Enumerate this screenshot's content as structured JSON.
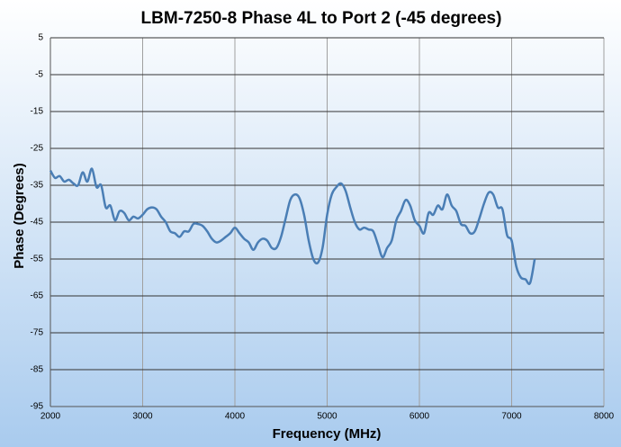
{
  "chart_data": {
    "type": "line",
    "title": "LBM-7250-8 Phase 4L to Port 2 (-45 degrees)",
    "x_label": "Frequency (MHz)",
    "y_label": "Phase (Degrees)",
    "x": [
      2000,
      2050,
      2100,
      2150,
      2200,
      2250,
      2300,
      2350,
      2400,
      2450,
      2500,
      2550,
      2600,
      2650,
      2700,
      2750,
      2800,
      2850,
      2900,
      2950,
      3000,
      3050,
      3100,
      3150,
      3200,
      3250,
      3300,
      3350,
      3400,
      3450,
      3500,
      3550,
      3600,
      3650,
      3700,
      3750,
      3800,
      3850,
      3900,
      3950,
      4000,
      4050,
      4100,
      4150,
      4200,
      4250,
      4300,
      4350,
      4400,
      4450,
      4500,
      4550,
      4600,
      4650,
      4700,
      4750,
      4800,
      4850,
      4900,
      4950,
      5000,
      5050,
      5100,
      5150,
      5200,
      5250,
      5300,
      5350,
      5400,
      5450,
      5500,
      5550,
      5600,
      5650,
      5700,
      5750,
      5800,
      5850,
      5900,
      5950,
      6000,
      6050,
      6100,
      6150,
      6200,
      6250,
      6300,
      6350,
      6400,
      6450,
      6500,
      6550,
      6600,
      6650,
      6700,
      6750,
      6800,
      6850,
      6900,
      6950,
      7000,
      7050,
      7100,
      7150,
      7200,
      7250
    ],
    "series": [
      {
        "color": "#4a7eb5",
        "values": [
          -31,
          -33,
          -32.5,
          -34,
          -33.5,
          -34.5,
          -35,
          -31.5,
          -34,
          -30.5,
          -35.5,
          -35,
          -41,
          -40.5,
          -44.5,
          -42,
          -42.5,
          -44.5,
          -43.5,
          -44,
          -43,
          -41.5,
          -41,
          -41.5,
          -43.5,
          -45,
          -47.5,
          -48,
          -49,
          -47.5,
          -47.5,
          -45.5,
          -45.5,
          -46,
          -47.5,
          -49.5,
          -50.5,
          -50,
          -49,
          -48,
          -46.5,
          -48,
          -49.5,
          -50.5,
          -52.5,
          -50.5,
          -49.5,
          -50,
          -52,
          -52,
          -49,
          -44,
          -39,
          -37.5,
          -38.5,
          -43,
          -50,
          -55,
          -56,
          -52,
          -43,
          -37.5,
          -35.5,
          -34.5,
          -36.5,
          -41,
          -45,
          -47,
          -46.5,
          -47,
          -47.5,
          -51,
          -54.5,
          -52,
          -50,
          -44.5,
          -42,
          -39,
          -40.5,
          -44.5,
          -46,
          -48,
          -42.5,
          -43,
          -40.5,
          -41.5,
          -37.5,
          -40.5,
          -42,
          -45.5,
          -46,
          -48,
          -47.5,
          -44,
          -40,
          -37,
          -37.5,
          -41,
          -41.5,
          -48.5,
          -50,
          -57,
          -60,
          -60.5,
          -61.5,
          -55
        ]
      }
    ],
    "xlim": [
      2000,
      8000
    ],
    "xticks": [
      2000,
      3000,
      4000,
      5000,
      6000,
      7000,
      8000
    ],
    "ylim": [
      -95,
      5
    ],
    "yticks": [
      5,
      -5,
      -15,
      -25,
      -35,
      -45,
      -55,
      -65,
      -75,
      -85,
      -95
    ],
    "grid": true
  }
}
